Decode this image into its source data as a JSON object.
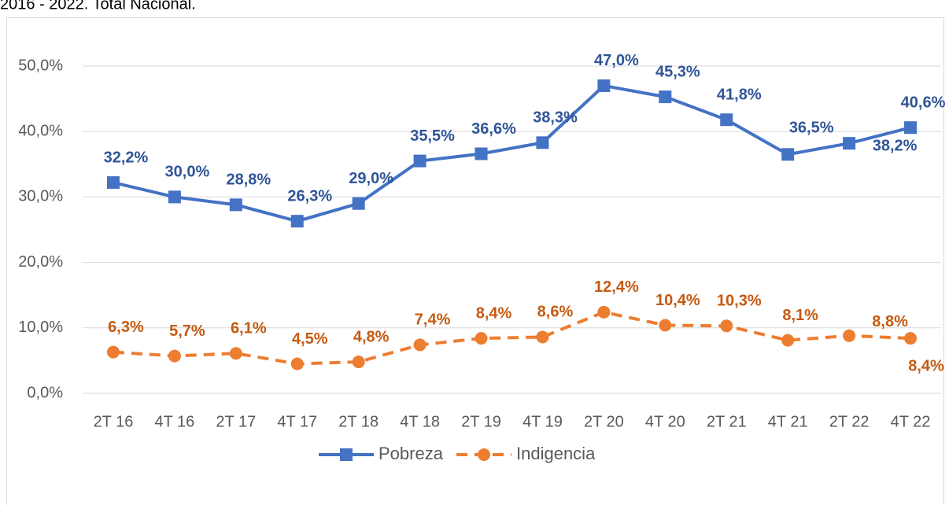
{
  "chart_data": {
    "type": "line",
    "subtitle": "2016 - 2022. Total Nacional.",
    "categories": [
      "2T 16",
      "4T 16",
      "2T 17",
      "4T 17",
      "2T 18",
      "4T 18",
      "2T 19",
      "4T 19",
      "2T 20",
      "4T 20",
      "2T 21",
      "4T 21",
      "2T 22",
      "4T 22"
    ],
    "series": [
      {
        "name": "Pobreza",
        "color": "#4472c4",
        "label_color": "#2f5597",
        "marker": "square",
        "dashed": false,
        "values": [
          32.2,
          30.0,
          28.8,
          26.3,
          29.0,
          35.5,
          36.6,
          38.3,
          47.0,
          45.3,
          41.8,
          36.5,
          38.2,
          40.6
        ],
        "value_labels": [
          "32,2%",
          "30,0%",
          "28,8%",
          "26,3%",
          "29,0%",
          "35,5%",
          "36,6%",
          "38,3%",
          "47,0%",
          "45,3%",
          "41,8%",
          "36,5%",
          "38,2%",
          "40,6%"
        ]
      },
      {
        "name": "Indigencia",
        "color": "#ed7d31",
        "label_color": "#c55a11",
        "marker": "circle",
        "dashed": true,
        "values": [
          6.3,
          5.7,
          6.1,
          4.5,
          4.8,
          7.4,
          8.4,
          8.6,
          12.4,
          10.4,
          10.3,
          8.1,
          8.8,
          8.4
        ],
        "value_labels": [
          "6,3%",
          "5,7%",
          "6,1%",
          "4,5%",
          "4,8%",
          "7,4%",
          "8,4%",
          "8,6%",
          "12,4%",
          "10,4%",
          "10,3%",
          "8,1%",
          "8,8%",
          "8,4%"
        ]
      }
    ],
    "ylim": [
      0,
      50
    ],
    "yticks": [
      {
        "value": 0,
        "label": "0,0%"
      },
      {
        "value": 10,
        "label": "10,0%"
      },
      {
        "value": 20,
        "label": "20,0%"
      },
      {
        "value": 30,
        "label": "30,0%"
      },
      {
        "value": 40,
        "label": "40,0%"
      },
      {
        "value": 50,
        "label": "50,0%"
      }
    ],
    "grid": true,
    "legend": "bottom"
  }
}
